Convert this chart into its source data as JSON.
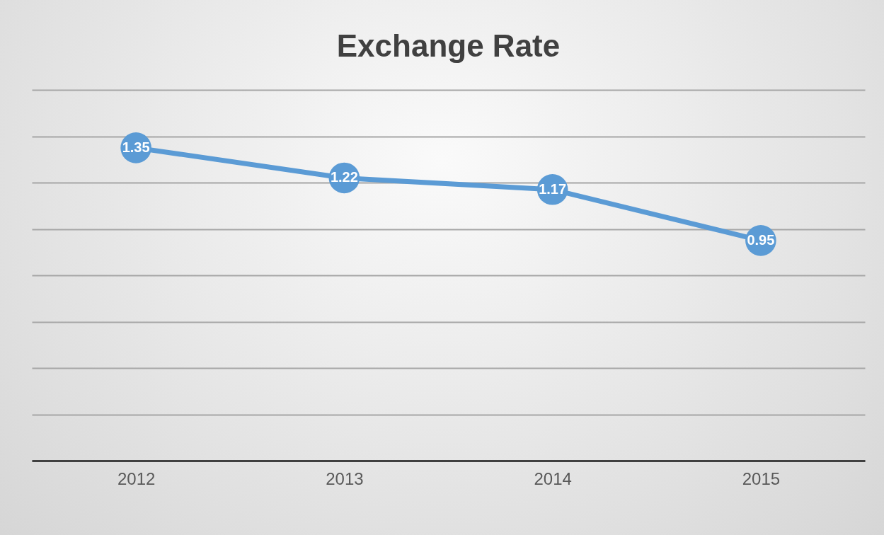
{
  "chart_data": {
    "type": "line",
    "title": "Exchange Rate",
    "categories": [
      "2012",
      "2013",
      "2014",
      "2015"
    ],
    "series": [
      {
        "color": "#5b9bd5",
        "values": [
          1.35,
          1.22,
          1.17,
          0.95
        ]
      }
    ],
    "ylim": [
      0,
      1.6
    ],
    "yticks": [
      {
        "value": 0,
        "label": null
      },
      {
        "value": 0.2,
        "label": null
      },
      {
        "value": 0.4,
        "label": null
      },
      {
        "value": 0.6,
        "label": null
      },
      {
        "value": 0.8,
        "label": null
      },
      {
        "value": 1.0,
        "label": null
      },
      {
        "value": 1.2,
        "label": null
      },
      {
        "value": 1.4,
        "label": null
      },
      {
        "value": 1.6,
        "label": null
      }
    ],
    "tick_labels": "x",
    "grid": "y",
    "marker": "circle",
    "line_style": "solid",
    "data_labels": true,
    "legend": false
  }
}
